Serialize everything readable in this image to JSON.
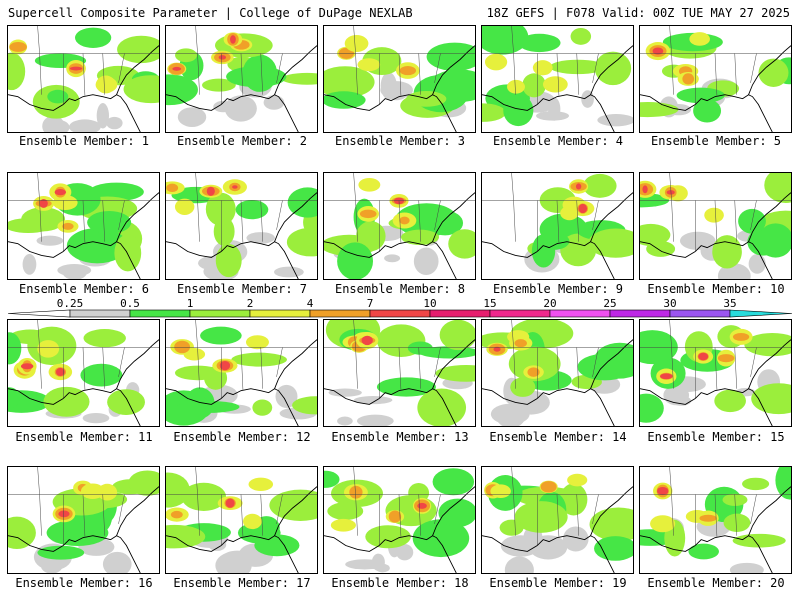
{
  "header": {
    "title_left": "Supercell Composite Parameter | College of DuPage NEXLAB",
    "title_right": "18Z GEFS | F078 Valid: 00Z TUE MAY 27 2025"
  },
  "colorbar": {
    "levels": [
      "0.25",
      "0.5",
      "1",
      "2",
      "4",
      "7",
      "10",
      "15",
      "20",
      "25",
      "30",
      "35"
    ],
    "colors": [
      "#d0d0d0",
      "#46e646",
      "#9bee3c",
      "#e6f03c",
      "#f0a028",
      "#f04646",
      "#e61e6e",
      "#f0288c",
      "#f050f0",
      "#be28e6",
      "#9b55f0",
      "#b48cf0",
      "#28dcdc"
    ]
  },
  "members": [
    {
      "label": "Ensemble Member: 1"
    },
    {
      "label": "Ensemble Member: 2"
    },
    {
      "label": "Ensemble Member: 3"
    },
    {
      "label": "Ensemble Member: 4"
    },
    {
      "label": "Ensemble Member: 5"
    },
    {
      "label": "Ensemble Member: 6"
    },
    {
      "label": "Ensemble Member: 7"
    },
    {
      "label": "Ensemble Member: 8"
    },
    {
      "label": "Ensemble Member: 9"
    },
    {
      "label": "Ensemble Member: 10"
    },
    {
      "label": "Ensemble Member: 11"
    },
    {
      "label": "Ensemble Member: 12"
    },
    {
      "label": "Ensemble Member: 13"
    },
    {
      "label": "Ensemble Member: 14"
    },
    {
      "label": "Ensemble Member: 15"
    },
    {
      "label": "Ensemble Member: 16"
    },
    {
      "label": "Ensemble Member: 17"
    },
    {
      "label": "Ensemble Member: 18"
    },
    {
      "label": "Ensemble Member: 19"
    },
    {
      "label": "Ensemble Member: 20"
    }
  ]
}
